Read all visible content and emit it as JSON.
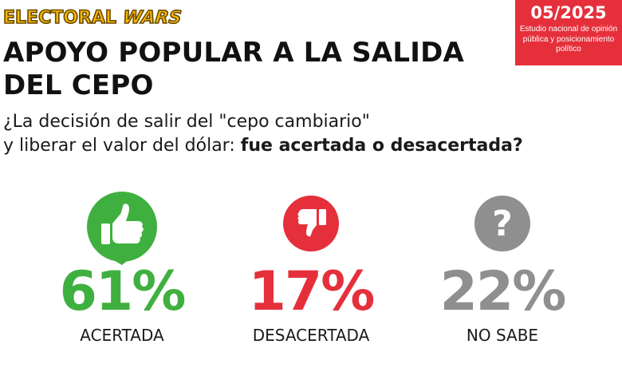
{
  "header": {
    "brand_word1": "ELECTORAL",
    "brand_word2": "WARS",
    "badge_date": "05/2025",
    "badge_subtitle": "Estudio nacional de opinión pública y posicionamiento político"
  },
  "title": "APOYO POPULAR A LA SALIDA DEL CEPO",
  "question": {
    "line1": "¿La decisión de salir del \"cepo cambiario\"",
    "line2_plain": "y liberar el valor del dólar: ",
    "line2_bold": "fue acertada o desacertada?"
  },
  "colors": {
    "acertada": "#3fb03f",
    "desacertada": "#e5303c",
    "no_sabe": "#8f8f8f",
    "badge": "#e5303c",
    "brand": "#f5b800"
  },
  "chart_data": {
    "type": "table",
    "categories": [
      "ACERTADA",
      "DESACERTADA",
      "NO SABE"
    ],
    "values": [
      61,
      17,
      22
    ],
    "value_labels": [
      "61%",
      "17%",
      "22%"
    ],
    "icons": [
      "thumbs-up-icon",
      "thumbs-down-icon",
      "question-mark-icon"
    ]
  }
}
